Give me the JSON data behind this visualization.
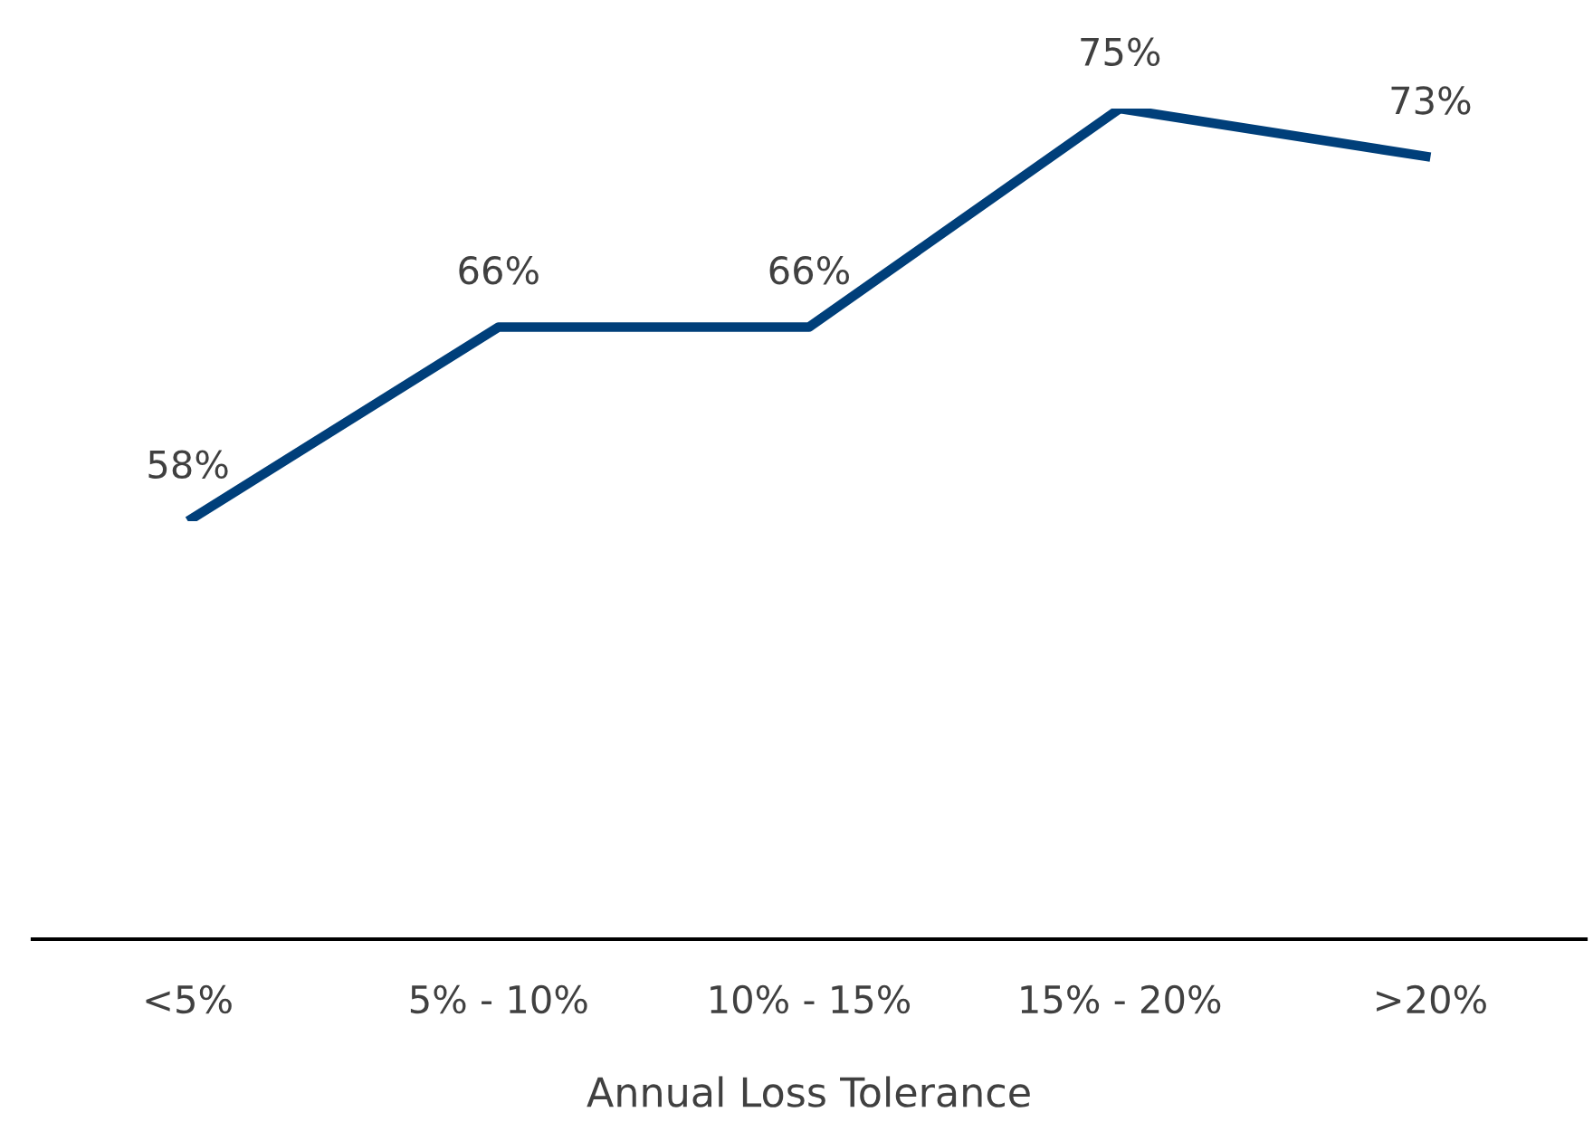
{
  "chart_data": {
    "type": "line",
    "xlabel": "Annual Loss Tolerance",
    "categories": [
      "<5%",
      "5% - 10%",
      "10% - 15%",
      "15% - 20%",
      ">20%"
    ],
    "series": [
      {
        "color": "#003f7a",
        "values": [
          58,
          66,
          66,
          75,
          73
        ],
        "value_labels": [
          "58%",
          "66%",
          "66%",
          "75%",
          "73%"
        ]
      }
    ],
    "tick_labels": "x",
    "grid": false,
    "legend": false,
    "marker": "none",
    "line_style": "solid"
  }
}
